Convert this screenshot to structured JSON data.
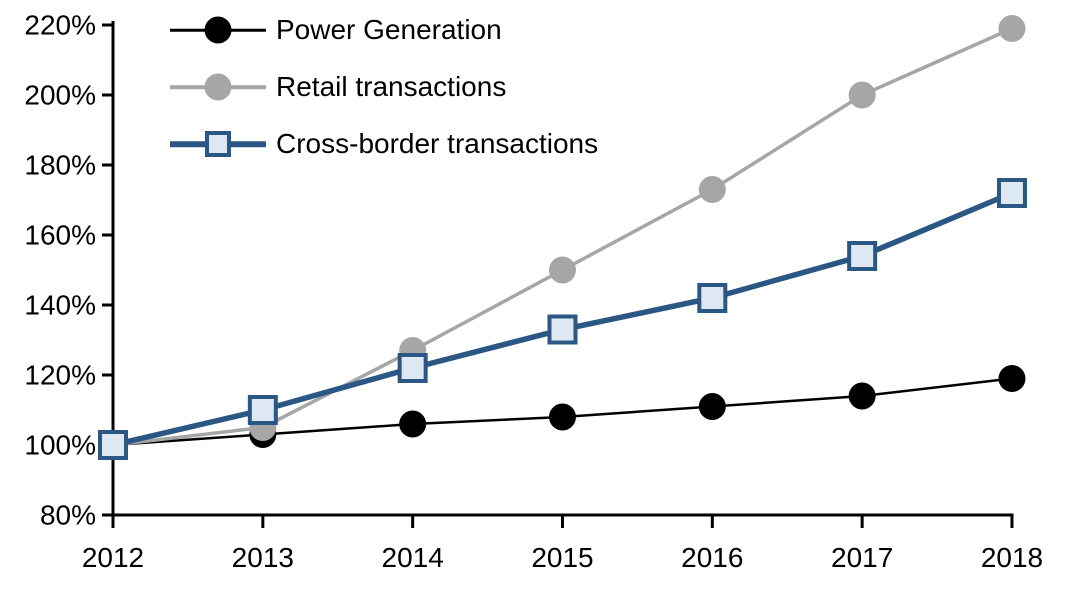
{
  "chart_data": {
    "type": "line",
    "title": "",
    "xlabel": "",
    "ylabel": "",
    "x": [
      2012,
      2013,
      2014,
      2015,
      2016,
      2017,
      2018
    ],
    "xtick_labels": [
      "2012",
      "2013",
      "2014",
      "2015",
      "2016",
      "2017",
      "2018"
    ],
    "ylim": [
      80,
      220
    ],
    "ytick_step": 20,
    "ytick_labels": [
      "80%",
      "100%",
      "120%",
      "140%",
      "160%",
      "180%",
      "200%",
      "220%"
    ],
    "grid": false,
    "legend_position": "top-left-inside",
    "axis_color": "#000000",
    "series": [
      {
        "name": "Power Generation",
        "values": [
          100,
          103,
          106,
          108,
          111,
          114,
          119
        ],
        "line_color": "#000000",
        "line_width": 2.5,
        "marker": "circle",
        "marker_fill": "#000000",
        "marker_border": "#000000",
        "marker_size": 27
      },
      {
        "name": "Retail transactions",
        "values": [
          100,
          105,
          127,
          150,
          173,
          200,
          219
        ],
        "line_color": "#a6a6a6",
        "line_width": 3.5,
        "marker": "circle",
        "marker_fill": "#a6a6a6",
        "marker_border": "#a6a6a6",
        "marker_size": 27
      },
      {
        "name": "Cross-border transactions",
        "values": [
          100,
          110,
          122,
          133,
          142,
          154,
          172
        ],
        "line_color": "#2a5784",
        "line_width": 5.5,
        "marker": "square",
        "marker_fill": "#dee8f3",
        "marker_border": "#2a5784",
        "marker_size": 26
      }
    ]
  }
}
